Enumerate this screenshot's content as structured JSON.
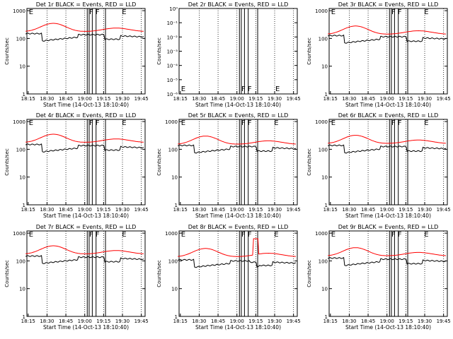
{
  "colors": {
    "background": "#ffffff",
    "events": "#000000",
    "lld": "#ff0000",
    "frame": "#000000"
  },
  "chart_data": [
    {
      "type": "line",
      "title": "Det 1r BLACK = Events, RED = LLD",
      "xlabel": "Start Time (14-Oct-13 18:10:40)",
      "ylabel": "Counts/sec",
      "x_ticks": [
        "18:15",
        "18:30",
        "18:45",
        "19:00",
        "19:15",
        "19:30",
        "19:45"
      ],
      "y_ticks": [
        "1",
        "10",
        "100",
        "1000"
      ],
      "yscale": "log",
      "ylim": [
        1,
        1200
      ],
      "flags": [
        "E",
        "F",
        "F",
        "E"
      ],
      "series": [
        {
          "name": "Events",
          "color": "#000000",
          "profile": "A",
          "base": 130
        },
        {
          "name": "LLD",
          "color": "#ff0000",
          "profile": "R",
          "base": 175
        }
      ]
    },
    {
      "type": "line",
      "title": "Det 2r BLACK = Events, RED = LLD",
      "xlabel": "Start Time (14-Oct-13 18:10:40)",
      "ylabel": "Counts/sec",
      "x_ticks": [
        "18:15",
        "18:30",
        "18:45",
        "19:00",
        "19:15",
        "19:30",
        "19:45"
      ],
      "y_ticks": [
        "10⁻⁶",
        "10⁻⁵",
        "10⁻⁴",
        "10⁻³",
        "10⁻²",
        "10⁻¹",
        "10⁰"
      ],
      "yscale": "log",
      "ylim": [
        1e-06,
        1
      ],
      "flags": [
        "E",
        "F",
        "F",
        "E"
      ],
      "series": []
    },
    {
      "type": "line",
      "title": "Det 3r BLACK = Events, RED = LLD",
      "xlabel": "Start Time (14-Oct-13 18:10:40)",
      "ylabel": "Counts/sec",
      "x_ticks": [
        "18:15",
        "18:30",
        "18:45",
        "19:00",
        "19:15",
        "19:30",
        "19:45"
      ],
      "y_ticks": [
        "1",
        "10",
        "100",
        "1000"
      ],
      "yscale": "log",
      "ylim": [
        1,
        1200
      ],
      "flags": [
        "E",
        "F",
        "F",
        "E"
      ],
      "series": [
        {
          "name": "Events",
          "color": "#000000",
          "profile": "B",
          "base": 110
        },
        {
          "name": "LLD",
          "color": "#ff0000",
          "profile": "R",
          "base": 140
        }
      ]
    },
    {
      "type": "line",
      "title": "Det 4r BLACK = Events, RED = LLD",
      "xlabel": "Start Time (14-Oct-13 18:10:40)",
      "ylabel": "Counts/sec",
      "x_ticks": [
        "18:15",
        "18:30",
        "18:45",
        "19:00",
        "19:15",
        "19:30",
        "19:45"
      ],
      "y_ticks": [
        "1",
        "10",
        "100",
        "1000"
      ],
      "yscale": "log",
      "ylim": [
        1,
        1200
      ],
      "flags": [
        "E",
        "F",
        "F",
        "E"
      ],
      "series": [
        {
          "name": "Events",
          "color": "#000000",
          "profile": "A",
          "base": 130
        },
        {
          "name": "LLD",
          "color": "#ff0000",
          "profile": "R",
          "base": 175
        }
      ]
    },
    {
      "type": "line",
      "title": "Det 5r BLACK = Events, RED = LLD",
      "xlabel": "Start Time (14-Oct-13 18:10:40)",
      "ylabel": "Counts/sec",
      "x_ticks": [
        "18:15",
        "18:30",
        "18:45",
        "19:00",
        "19:15",
        "19:30",
        "19:45"
      ],
      "y_ticks": [
        "1",
        "10",
        "100",
        "1000"
      ],
      "yscale": "log",
      "ylim": [
        1,
        1200
      ],
      "flags": [
        "E",
        "F",
        "F",
        "E"
      ],
      "series": [
        {
          "name": "Events",
          "color": "#000000",
          "profile": "B",
          "base": 120
        },
        {
          "name": "LLD",
          "color": "#ff0000",
          "profile": "R",
          "base": 150
        }
      ]
    },
    {
      "type": "line",
      "title": "Det 6r BLACK = Events, RED = LLD",
      "xlabel": "Start Time (14-Oct-13 18:10:40)",
      "ylabel": "Counts/sec",
      "x_ticks": [
        "18:15",
        "18:30",
        "18:45",
        "19:00",
        "19:15",
        "19:30",
        "19:45"
      ],
      "y_ticks": [
        "1",
        "10",
        "100",
        "1000"
      ],
      "yscale": "log",
      "ylim": [
        1,
        1200
      ],
      "flags": [
        "E",
        "F",
        "F",
        "E"
      ],
      "series": [
        {
          "name": "Events",
          "color": "#000000",
          "profile": "B",
          "base": 120
        },
        {
          "name": "LLD",
          "color": "#ff0000",
          "profile": "R",
          "base": 160
        }
      ]
    },
    {
      "type": "line",
      "title": "Det 7r BLACK = Events, RED = LLD",
      "xlabel": "Start Time (14-Oct-13 18:10:40)",
      "ylabel": "Counts/sec",
      "x_ticks": [
        "18:15",
        "18:30",
        "18:45",
        "19:00",
        "19:15",
        "19:30",
        "19:45"
      ],
      "y_ticks": [
        "1",
        "10",
        "100",
        "1000"
      ],
      "yscale": "log",
      "ylim": [
        1,
        1200
      ],
      "flags": [
        "E",
        "F",
        "F",
        "E"
      ],
      "series": [
        {
          "name": "Events",
          "color": "#000000",
          "profile": "A",
          "base": 130
        },
        {
          "name": "LLD",
          "color": "#ff0000",
          "profile": "R",
          "base": 175
        }
      ]
    },
    {
      "type": "line",
      "title": "Det 8r BLACK = Events, RED = LLD",
      "xlabel": "Start Time (14-Oct-13 18:10:40)",
      "ylabel": "Counts/sec",
      "x_ticks": [
        "18:15",
        "18:30",
        "18:45",
        "19:00",
        "19:15",
        "19:30",
        "19:45"
      ],
      "y_ticks": [
        "1",
        "10",
        "100",
        "1000"
      ],
      "yscale": "log",
      "ylim": [
        1,
        1200
      ],
      "flags": [
        "E",
        "F",
        "F",
        "E"
      ],
      "series": [
        {
          "name": "Events",
          "color": "#000000",
          "profile": "C",
          "base": 95
        },
        {
          "name": "LLD",
          "color": "#ff0000",
          "profile": "S",
          "base": 140
        }
      ]
    },
    {
      "type": "line",
      "title": "Det 9r BLACK = Events, RED = LLD",
      "xlabel": "Start Time (14-Oct-13 18:10:40)",
      "ylabel": "Counts/sec",
      "x_ticks": [
        "18:15",
        "18:30",
        "18:45",
        "19:00",
        "19:15",
        "19:30",
        "19:45"
      ],
      "y_ticks": [
        "1",
        "10",
        "100",
        "1000"
      ],
      "yscale": "log",
      "ylim": [
        1,
        1200
      ],
      "flags": [
        "E",
        "F",
        "F",
        "E"
      ],
      "series": [
        {
          "name": "Events",
          "color": "#000000",
          "profile": "B",
          "base": 110
        },
        {
          "name": "LLD",
          "color": "#ff0000",
          "profile": "R",
          "base": 150
        }
      ]
    }
  ]
}
